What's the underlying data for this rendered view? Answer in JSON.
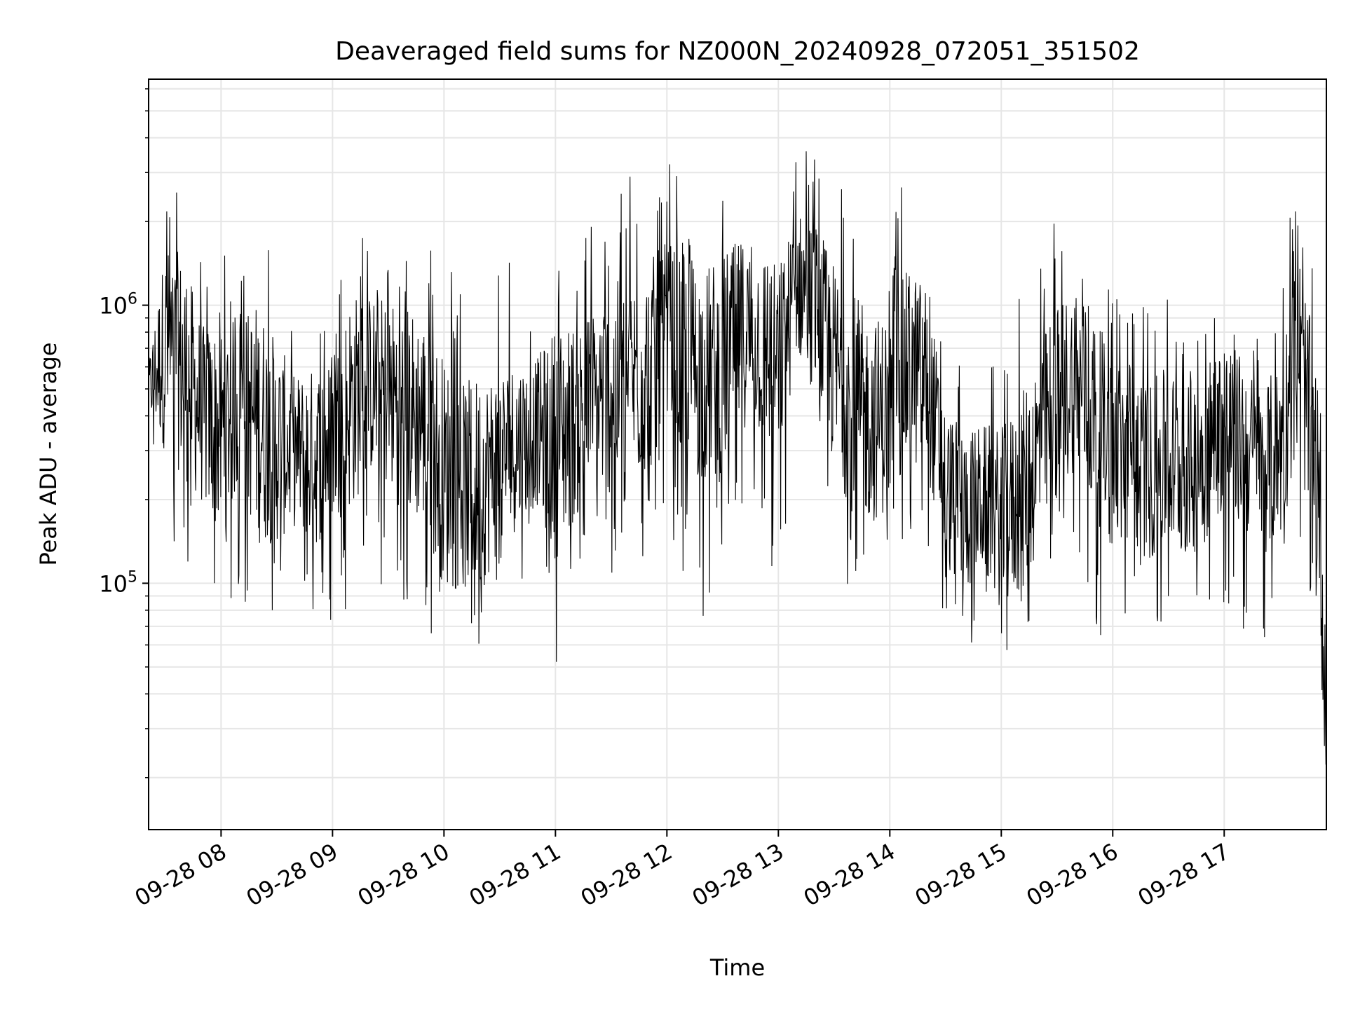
{
  "chart_data": {
    "type": "line",
    "title": "Deaveraged field sums for NZ000N_20240928_072051_351502",
    "xlabel": "Time",
    "ylabel": "Peak ADU - average",
    "x_range": [
      "2024-09-28 07:21",
      "2024-09-28 17:55"
    ],
    "y_scale": "log",
    "ylim": [
      13000,
      6500000
    ],
    "y_major_ticks": [
      {
        "value": 100000,
        "base": "10",
        "exp": "5"
      },
      {
        "value": 1000000,
        "base": "10",
        "exp": "6"
      }
    ],
    "x_ticks": [
      {
        "time": "2024-09-28 08:00",
        "label": "09-28 08"
      },
      {
        "time": "2024-09-28 09:00",
        "label": "09-28 09"
      },
      {
        "time": "2024-09-28 10:00",
        "label": "09-28 10"
      },
      {
        "time": "2024-09-28 11:00",
        "label": "09-28 11"
      },
      {
        "time": "2024-09-28 12:00",
        "label": "09-28 12"
      },
      {
        "time": "2024-09-28 13:00",
        "label": "09-28 13"
      },
      {
        "time": "2024-09-28 14:00",
        "label": "09-28 14"
      },
      {
        "time": "2024-09-28 15:00",
        "label": "09-28 15"
      },
      {
        "time": "2024-09-28 16:00",
        "label": "09-28 16"
      },
      {
        "time": "2024-09-28 17:00",
        "label": "09-28 17"
      }
    ],
    "grid": true,
    "line_color": "#000000",
    "grid_color": "#e6e6e6",
    "series": [
      {
        "x": [
          "07:21",
          "07:30",
          "07:40",
          "07:50",
          "08:00",
          "08:10",
          "08:20",
          "08:30",
          "08:40",
          "08:50",
          "09:00",
          "09:10",
          "09:20",
          "09:30",
          "09:40",
          "09:50",
          "10:00",
          "10:10",
          "10:20",
          "10:30",
          "10:40",
          "10:50",
          "11:00",
          "11:10",
          "11:20",
          "11:30",
          "11:40",
          "11:50",
          "12:00",
          "12:10",
          "12:20",
          "12:30",
          "12:40",
          "12:50",
          "13:00",
          "13:10",
          "13:20",
          "13:30",
          "13:40",
          "13:50",
          "14:00",
          "14:10",
          "14:20",
          "14:30",
          "14:40",
          "14:50",
          "15:00",
          "15:10",
          "15:20",
          "15:30",
          "15:40",
          "15:50",
          "16:00",
          "16:10",
          "16:20",
          "16:30",
          "16:40",
          "16:50",
          "17:00",
          "17:10",
          "17:20",
          "17:30",
          "17:40",
          "17:50",
          "17:55"
        ],
        "y": [
          500000,
          700000,
          600000,
          400000,
          350000,
          450000,
          380000,
          320000,
          300000,
          280000,
          330000,
          450000,
          520000,
          480000,
          420000,
          380000,
          250000,
          220000,
          230000,
          280000,
          320000,
          350000,
          320000,
          380000,
          450000,
          500000,
          520000,
          600000,
          700000,
          650000,
          550000,
          600000,
          800000,
          750000,
          600000,
          1200000,
          1000000,
          600000,
          450000,
          380000,
          420000,
          600000,
          550000,
          220000,
          180000,
          200000,
          170000,
          200000,
          300000,
          450000,
          550000,
          400000,
          280000,
          300000,
          250000,
          280000,
          250000,
          300000,
          380000,
          320000,
          250000,
          300000,
          700000,
          250000,
          30000
        ],
        "low": [
          380000,
          130000,
          110000,
          110000,
          70000,
          90000,
          70000,
          75000,
          80000,
          75000,
          60000,
          90000,
          100000,
          95000,
          80000,
          70000,
          45000,
          50000,
          55000,
          100000,
          100000,
          120000,
          50000,
          110000,
          120000,
          100000,
          130000,
          110000,
          130000,
          90000,
          75000,
          130000,
          150000,
          120000,
          70000,
          500000,
          300000,
          130000,
          85000,
          80000,
          100000,
          150000,
          120000,
          70000,
          60000,
          60000,
          52000,
          55000,
          70000,
          100000,
          100000,
          65000,
          65000,
          70000,
          65000,
          70000,
          65000,
          60000,
          60000,
          65000,
          60000,
          70000,
          150000,
          50000,
          15000
        ],
        "high": [
          900000,
          3000000,
          3200000,
          1700000,
          1800000,
          1200000,
          2800000,
          1600000,
          800000,
          1200000,
          700000,
          2600000,
          1500000,
          1800000,
          2000000,
          1700000,
          1500000,
          1200000,
          1500000,
          1600000,
          1300000,
          1100000,
          1800000,
          2300000,
          2000000,
          2500000,
          3200000,
          2700000,
          3300000,
          2800000,
          2000000,
          4200000,
          2500000,
          2300000,
          1500000,
          4500000,
          3800000,
          3000000,
          2500000,
          1800000,
          2000000,
          3200000,
          2000000,
          800000,
          700000,
          600000,
          800000,
          1100000,
          1600000,
          2200000,
          1500000,
          1400000,
          1100000,
          1300000,
          1000000,
          1200000,
          900000,
          1000000,
          800000,
          900000,
          750000,
          1100000,
          3500000,
          1200000,
          100000
        ]
      }
    ]
  }
}
